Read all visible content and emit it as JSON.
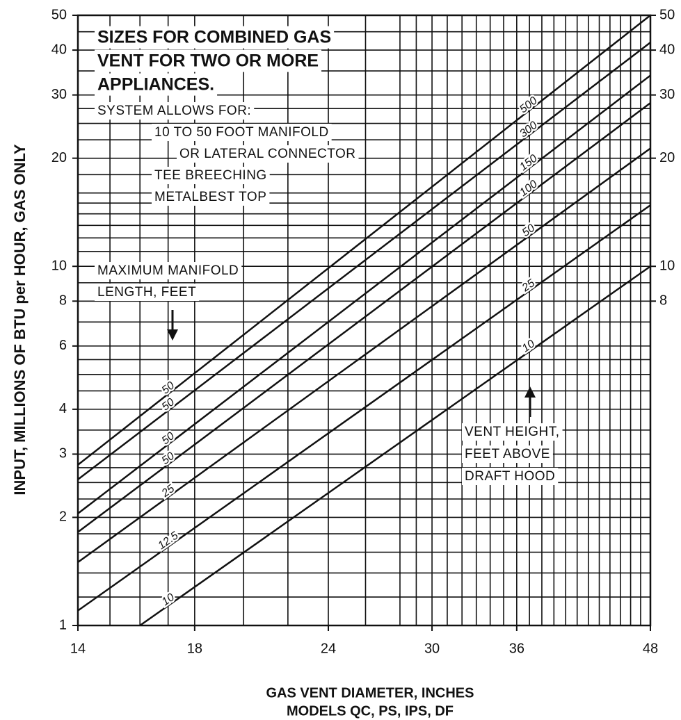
{
  "chart_data": {
    "type": "line",
    "title_lines": [
      "SIZES FOR COMBINED GAS",
      "VENT FOR TWO OR MORE",
      "APPLIANCES."
    ],
    "notes": [
      "SYSTEM ALLOWS FOR:",
      "10 TO 50 FOOT MANIFOLD",
      "OR LATERAL CONNECTOR",
      "TEE BREECHING",
      "METALBEST TOP"
    ],
    "manifold_note": [
      "MAXIMUM MANIFOLD",
      "LENGTH, FEET"
    ],
    "vent_note": [
      "VENT HEIGHT,",
      "FEET ABOVE",
      "DRAFT HOOD"
    ],
    "y_label": "INPUT, MILLIONS OF BTU per HOUR, GAS ONLY",
    "x_label_lines": [
      "GAS VENT DIAMETER, INCHES",
      "MODELS QC, PS, IPS, DF"
    ],
    "x_log": true,
    "y_log": true,
    "grid": true,
    "color": "#111111",
    "xlim": [
      14,
      48
    ],
    "ylim": [
      1,
      50
    ],
    "y2lim": [
      1,
      50
    ],
    "xticks": [
      14,
      18,
      24,
      30,
      36,
      48
    ],
    "yticks": [
      1,
      2,
      3,
      4,
      6,
      8,
      10,
      20,
      30,
      40,
      50
    ],
    "y2ticks": [
      8,
      10,
      20,
      30,
      40,
      50
    ],
    "xgrid": [
      14,
      15,
      16,
      17,
      18,
      20,
      22,
      24,
      26,
      28,
      29,
      30,
      31,
      32,
      33,
      34,
      35,
      36,
      37,
      38,
      39,
      40,
      41,
      42,
      43,
      44,
      45,
      46,
      47,
      48
    ],
    "ygrid": [
      1,
      1.2,
      1.4,
      1.6,
      1.8,
      2,
      2.25,
      2.5,
      2.75,
      3,
      3.5,
      4,
      4.5,
      5,
      5.5,
      6,
      7,
      8,
      9,
      10,
      11,
      12,
      13,
      14,
      15,
      16,
      18,
      20,
      22.5,
      25,
      27.5,
      30,
      35,
      40,
      45,
      50
    ],
    "series": [
      {
        "name": "500",
        "manifold_label": "50",
        "x": [
          14,
          48
        ],
        "values": [
          2.8,
          50
        ]
      },
      {
        "name": "300",
        "manifold_label": "50",
        "x": [
          14,
          48
        ],
        "values": [
          2.55,
          42
        ]
      },
      {
        "name": "150",
        "manifold_label": "50",
        "x": [
          14,
          48
        ],
        "values": [
          2.05,
          34
        ]
      },
      {
        "name": "100",
        "manifold_label": "50",
        "x": [
          14,
          48
        ],
        "values": [
          1.82,
          28.5
        ]
      },
      {
        "name": "50",
        "manifold_label": "25",
        "x": [
          14,
          48
        ],
        "values": [
          1.5,
          21.3
        ]
      },
      {
        "name": "25",
        "manifold_label": "12.5",
        "x": [
          14,
          48
        ],
        "values": [
          1.1,
          14.8
        ]
      },
      {
        "name": "10",
        "manifold_label": "10",
        "x": [
          16,
          48
        ],
        "values": [
          1,
          10
        ]
      }
    ]
  }
}
